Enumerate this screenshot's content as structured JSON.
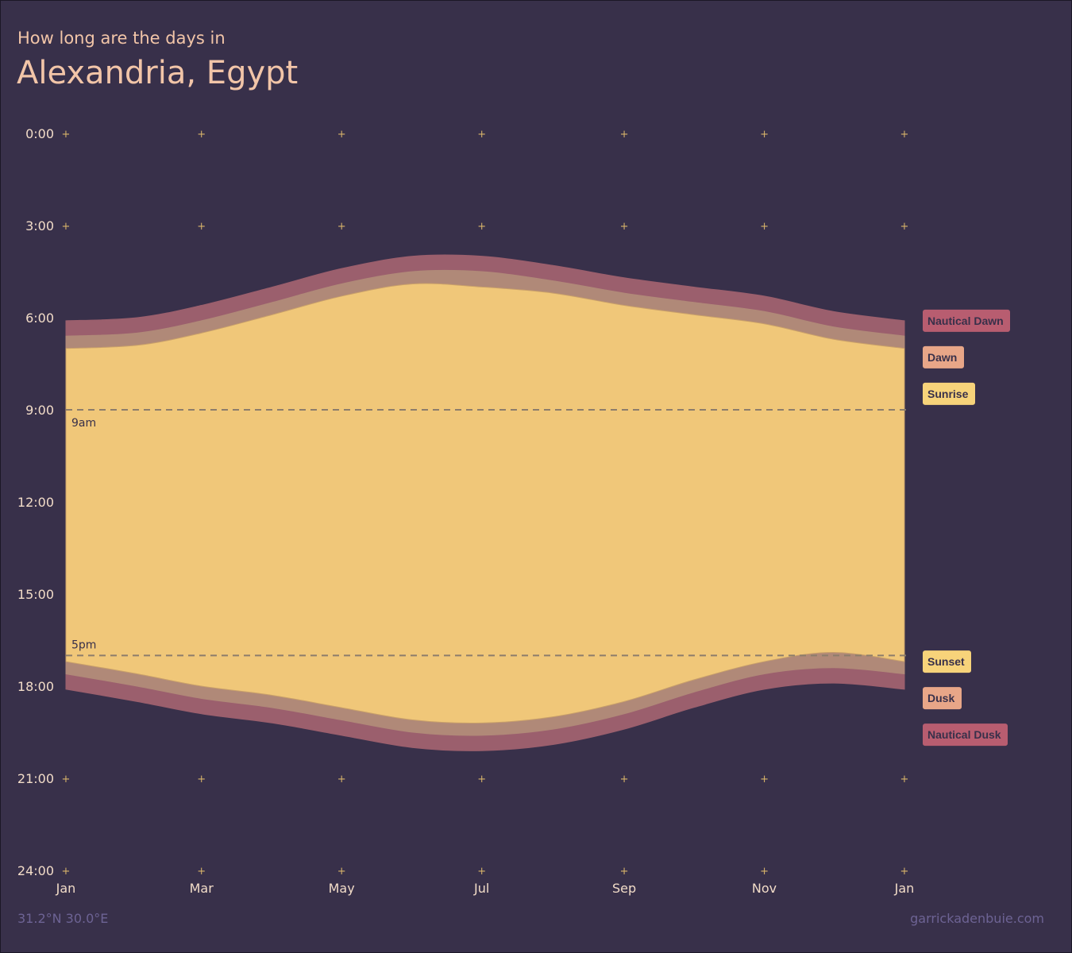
{
  "header": {
    "subtitle": "How long are the days in",
    "title": "Alexandria, Egypt"
  },
  "footer": {
    "coordinates": "31.2°N 30.0°E",
    "credit": "garrickadenbuie.com"
  },
  "colors": {
    "background": "#38304a",
    "nautical": "#9b5f6d",
    "civil": "#b08978",
    "day": "#f0c779",
    "title": "#f2c5a8",
    "tick_text": "#f2dcc8",
    "grid_plus": "#d7b36a",
    "reference_line": "#8c7d6b",
    "legend_nautical": "#b85d70",
    "legend_civil": "#e8a688",
    "legend_sun": "#f7d37a"
  },
  "chart_data": {
    "type": "area",
    "title": "Alexandria, Egypt",
    "subtitle": "How long are the days in",
    "xlabel": "",
    "ylabel": "",
    "x_ticks": [
      "Jan",
      "Mar",
      "May",
      "Jul",
      "Sep",
      "Nov",
      "Jan"
    ],
    "y_ticks": [
      "0:00",
      "3:00",
      "6:00",
      "9:00",
      "12:00",
      "15:00",
      "18:00",
      "21:00",
      "24:00"
    ],
    "ylim": [
      0,
      24
    ],
    "y_reversed": true,
    "grid": "plus-markers",
    "legend_position": "right",
    "reference_lines": [
      {
        "label": "9am",
        "value": 9
      },
      {
        "label": "5pm",
        "value": 17
      }
    ],
    "x_days": [
      0,
      31,
      59,
      90,
      120,
      151,
      181,
      212,
      243,
      273,
      304,
      334,
      365
    ],
    "series": [
      {
        "name": "Nautical Dawn",
        "values": [
          6.1,
          6.0,
          5.6,
          5.0,
          4.4,
          4.0,
          4.0,
          4.3,
          4.7,
          5.0,
          5.3,
          5.8,
          6.1
        ]
      },
      {
        "name": "Dawn",
        "values": [
          6.6,
          6.5,
          6.1,
          5.5,
          4.9,
          4.5,
          4.5,
          4.8,
          5.2,
          5.5,
          5.8,
          6.3,
          6.6
        ]
      },
      {
        "name": "Sunrise",
        "values": [
          7.0,
          6.9,
          6.5,
          5.9,
          5.3,
          4.9,
          5.0,
          5.2,
          5.6,
          5.9,
          6.2,
          6.7,
          7.0
        ]
      },
      {
        "name": "Sunset",
        "values": [
          17.2,
          17.6,
          18.0,
          18.3,
          18.7,
          19.1,
          19.2,
          19.0,
          18.5,
          17.8,
          17.2,
          16.9,
          17.2
        ]
      },
      {
        "name": "Dusk",
        "values": [
          17.6,
          18.0,
          18.4,
          18.7,
          19.1,
          19.5,
          19.6,
          19.4,
          18.9,
          18.2,
          17.6,
          17.4,
          17.6
        ]
      },
      {
        "name": "Nautical Dusk",
        "values": [
          18.1,
          18.5,
          18.9,
          19.2,
          19.6,
          20.0,
          20.1,
          19.9,
          19.4,
          18.7,
          18.1,
          17.9,
          18.1
        ]
      }
    ]
  }
}
